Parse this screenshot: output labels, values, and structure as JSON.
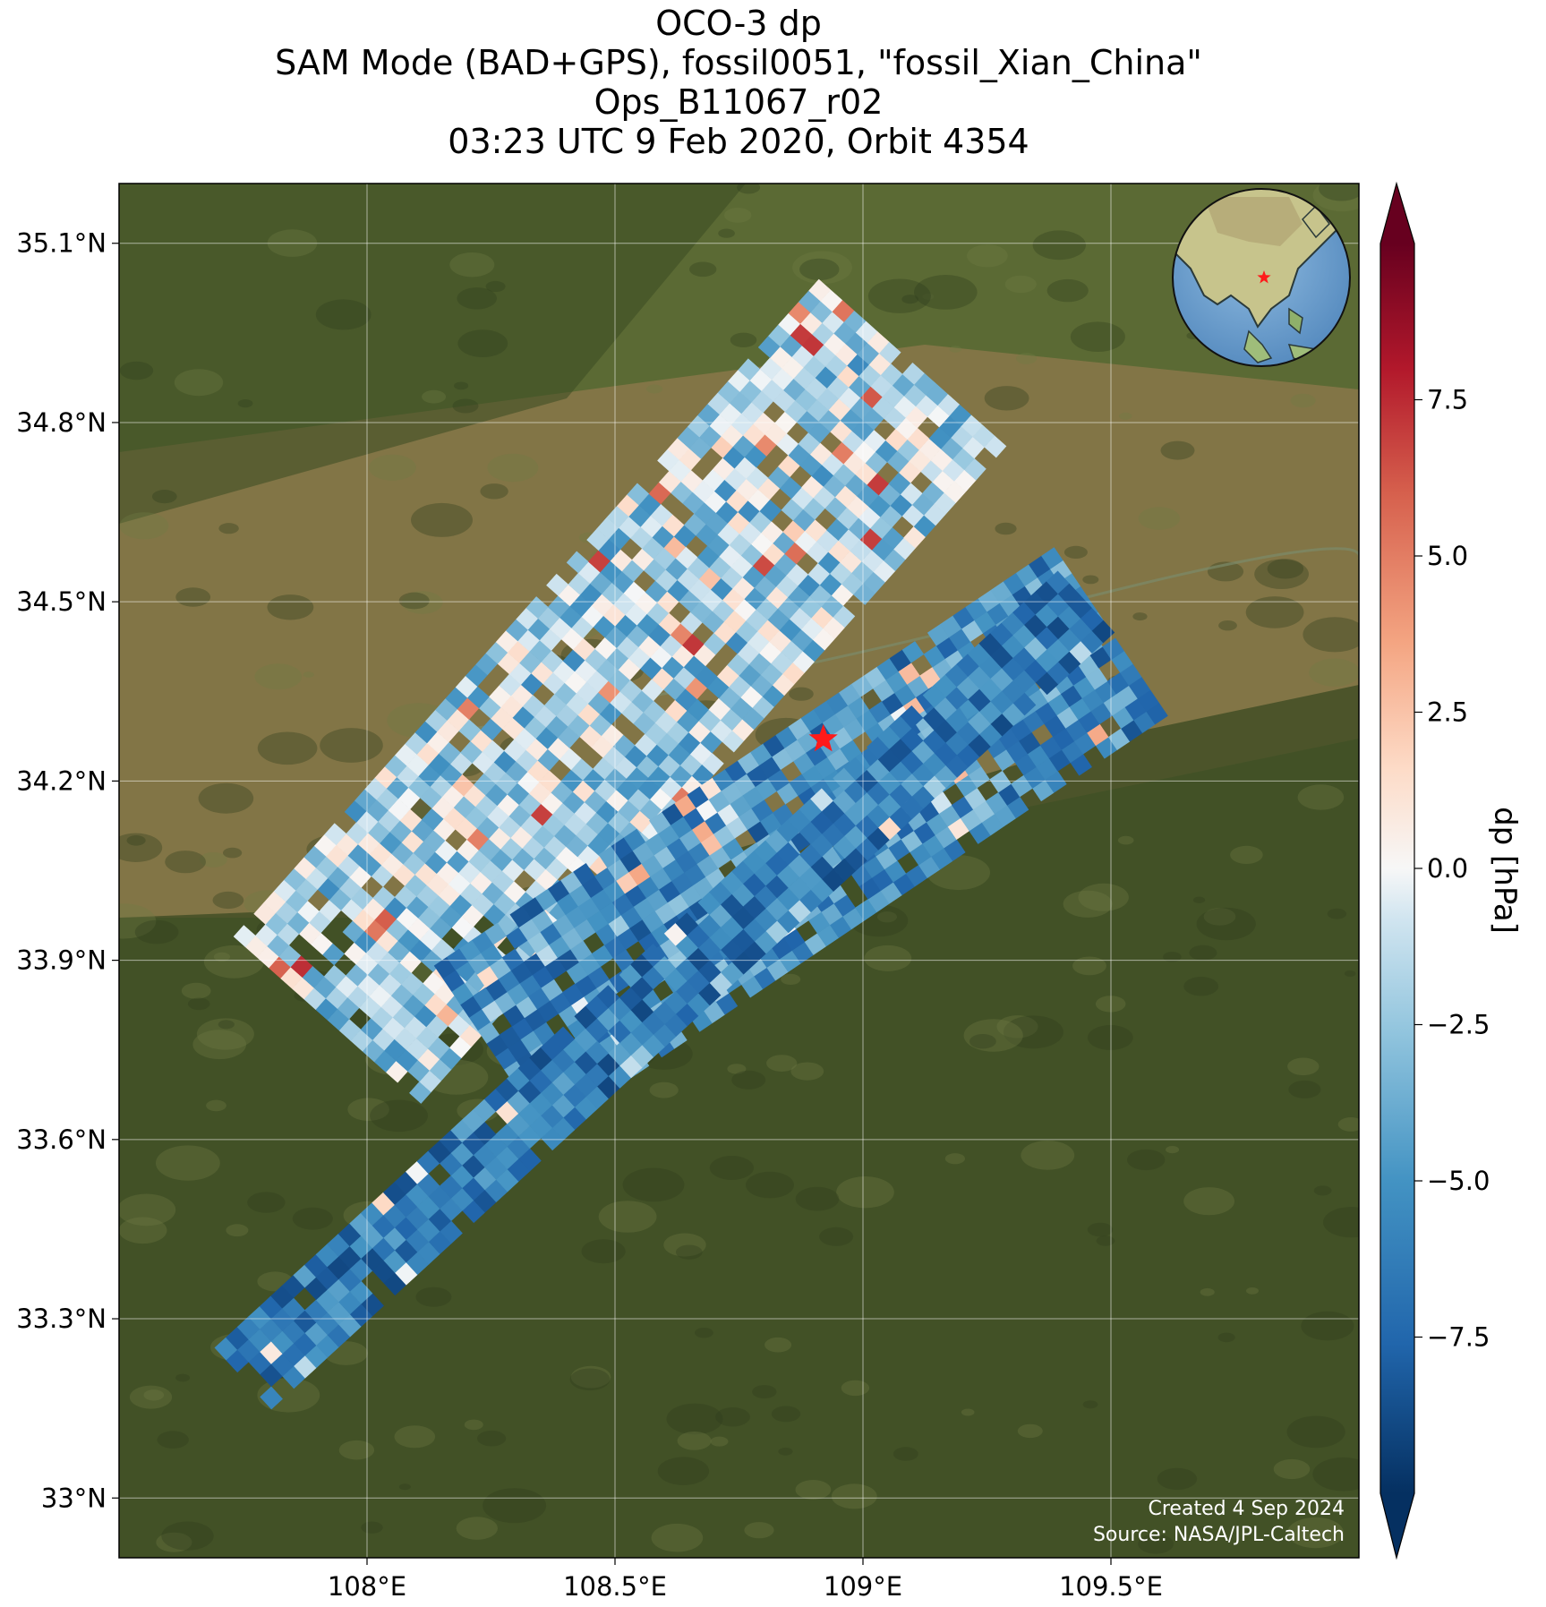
{
  "title": {
    "line1": "OCO-3 dp",
    "line2": "SAM Mode (BAD+GPS), fossil0051, \"fossil_Xian_China\"",
    "line3": "Ops_B11067_r02",
    "line4": "03:23 UTC 9 Feb 2020, Orbit 4354"
  },
  "map": {
    "lon_range": [
      107.5,
      110.0
    ],
    "lat_range": [
      32.9,
      35.2
    ],
    "lon_ticks": [
      {
        "value": 108.0,
        "label": "108°E"
      },
      {
        "value": 108.5,
        "label": "108.5°E"
      },
      {
        "value": 109.0,
        "label": "109°E"
      },
      {
        "value": 109.5,
        "label": "109.5°E"
      }
    ],
    "lat_ticks": [
      {
        "value": 33.0,
        "label": "33°N"
      },
      {
        "value": 33.3,
        "label": "33.3°N"
      },
      {
        "value": 33.6,
        "label": "33.6°N"
      },
      {
        "value": 33.9,
        "label": "33.9°N"
      },
      {
        "value": 34.2,
        "label": "34.2°N"
      },
      {
        "value": 34.5,
        "label": "34.5°N"
      },
      {
        "value": 34.8,
        "label": "34.8°N"
      },
      {
        "value": 35.1,
        "label": "35.1°N"
      }
    ],
    "target_marker": {
      "lon": 108.92,
      "lat": 34.27,
      "color": "#ff1a1a",
      "icon": "star-icon"
    },
    "basemap": "satellite-imagery",
    "inset": "globe-locator"
  },
  "chart_data": {
    "type": "heatmap",
    "variable": "dp",
    "colorbar": {
      "label": "dp [hPa]",
      "range": [
        -10,
        10
      ],
      "cmap": "RdBu_r",
      "extend": "both",
      "ticks": [
        {
          "value": 7.5,
          "label": "7.5"
        },
        {
          "value": 5.0,
          "label": "5.0"
        },
        {
          "value": 2.5,
          "label": "2.5"
        },
        {
          "value": 0.0,
          "label": "0.0"
        },
        {
          "value": -2.5,
          "label": "−2.5"
        },
        {
          "value": -5.0,
          "label": "−5.0"
        },
        {
          "value": -7.5,
          "label": "−7.5"
        }
      ]
    },
    "swaths": [
      {
        "lon_start": 107.92,
        "lat_start": 33.8,
        "lon_end": 109.1,
        "lat_end": 34.9,
        "width_deg": 0.42,
        "mean_dp": -2.0,
        "spread": 3.5,
        "seed": 11
      },
      {
        "lon_start": 108.25,
        "lat_start": 33.75,
        "lon_end": 109.5,
        "lat_end": 34.45,
        "width_deg": 0.34,
        "mean_dp": -5.5,
        "spread": 3.0,
        "seed": 23
      },
      {
        "lon_start": 107.75,
        "lat_start": 33.2,
        "lon_end": 109.45,
        "lat_end": 34.5,
        "width_deg": 0.14,
        "mean_dp": -6.5,
        "spread": 2.5,
        "seed": 37
      }
    ]
  },
  "credits": {
    "created": "Created 4 Sep 2024",
    "source": "Source: NASA/JPL-Caltech"
  },
  "colors": {
    "terrain_dark": "#3a4a22",
    "terrain_mid": "#5b6a34",
    "terrain_light": "#8f7a4c",
    "water": "#5a8fc4"
  }
}
